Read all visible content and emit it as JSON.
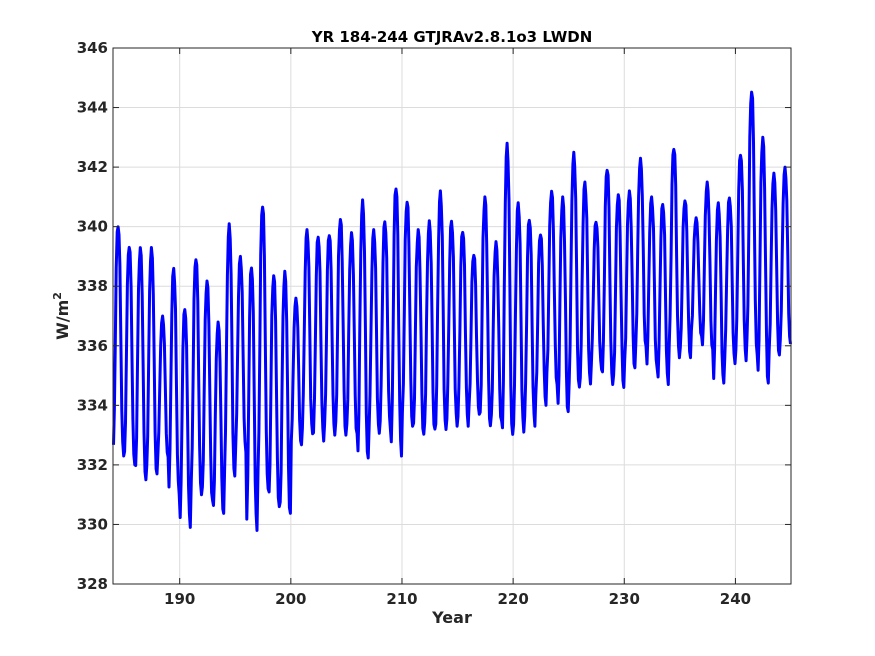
{
  "chart_data": {
    "type": "line",
    "title": "YR 184-244 GTJRAv2.8.1o3 LWDN",
    "xlabel": "Year",
    "ylabel": "W/m",
    "ylabel_sup": "2",
    "xlim": [
      184,
      245
    ],
    "ylim": [
      328,
      346
    ],
    "xticks": [
      190,
      200,
      210,
      220,
      230,
      240
    ],
    "yticks": [
      328,
      330,
      332,
      334,
      336,
      338,
      340,
      342,
      344,
      346
    ],
    "grid": true,
    "legend": "none",
    "series_color": "#0000ff",
    "series": [
      {
        "annual_min": [
          332.3,
          332.0,
          331.5,
          331.6,
          332.2,
          331.0,
          329.9,
          331.0,
          330.8,
          330.3,
          331.5,
          332.4,
          329.8,
          331.2,
          330.6,
          330.3,
          332.6,
          333.0,
          332.8,
          333.0,
          333.0,
          333.0,
          332.1,
          333.0,
          333.2,
          332.3,
          333.3,
          333.0,
          333.1,
          333.1,
          333.3,
          333.3,
          333.7,
          333.3,
          333.4,
          332.9,
          333.1,
          333.3,
          334.0,
          334.7,
          333.7,
          334.5,
          334.7,
          335.2,
          334.7,
          334.6,
          335.2,
          335.9,
          335.2,
          334.7,
          335.6,
          335.6,
          336.3,
          335.8,
          334.7,
          335.4,
          335.5,
          335.7,
          334.7,
          335.6,
          336.0
        ],
        "annual_max": [
          340.1,
          339.4,
          339.3,
          339.3,
          337.0,
          338.6,
          337.3,
          339.0,
          338.2,
          336.8,
          340.1,
          339.0,
          338.7,
          340.8,
          338.4,
          338.5,
          337.6,
          339.9,
          339.7,
          339.8,
          340.3,
          339.8,
          340.9,
          339.9,
          340.2,
          341.4,
          340.9,
          339.9,
          340.2,
          341.2,
          340.2,
          339.9,
          339.1,
          341.0,
          339.5,
          342.8,
          340.8,
          340.3,
          339.8,
          341.2,
          341.0,
          342.5,
          341.5,
          340.2,
          342.0,
          341.1,
          341.2,
          342.3,
          341.0,
          340.8,
          342.7,
          340.9,
          340.3,
          341.5,
          340.8,
          341.0,
          342.5,
          344.6,
          343.0,
          341.8,
          342.0
        ]
      }
    ]
  }
}
